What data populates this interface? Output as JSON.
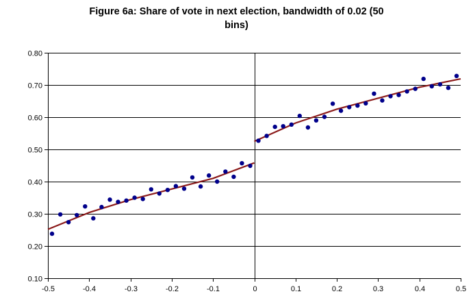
{
  "chart_data": {
    "type": "scatter",
    "title_lines": [
      "Figure 6a: Share of vote in next election, bandwidth of 0.02 (50",
      "bins)"
    ],
    "xlabel": "",
    "ylabel": "",
    "xlim": [
      -0.5,
      0.5
    ],
    "ylim": [
      0.1,
      0.8
    ],
    "x_ticks": [
      "-0.5",
      "-0.4",
      "-0.3",
      "-0.2",
      "-0.1",
      "0",
      "0.1",
      "0.2",
      "0.3",
      "0.4",
      "0.5"
    ],
    "y_ticks": [
      "0.10",
      "0.20",
      "0.30",
      "0.40",
      "0.50",
      "0.60",
      "0.70",
      "0.80"
    ],
    "grid": "horizontal",
    "vertical_line_at_x": 0,
    "marker_color": "#00008B",
    "fit_color": "#8B1A1A",
    "points": [
      {
        "x": -0.49,
        "y": 0.238
      },
      {
        "x": -0.47,
        "y": 0.298
      },
      {
        "x": -0.45,
        "y": 0.274
      },
      {
        "x": -0.43,
        "y": 0.296
      },
      {
        "x": -0.41,
        "y": 0.323
      },
      {
        "x": -0.39,
        "y": 0.286
      },
      {
        "x": -0.37,
        "y": 0.321
      },
      {
        "x": -0.35,
        "y": 0.344
      },
      {
        "x": -0.33,
        "y": 0.337
      },
      {
        "x": -0.31,
        "y": 0.341
      },
      {
        "x": -0.29,
        "y": 0.35
      },
      {
        "x": -0.27,
        "y": 0.346
      },
      {
        "x": -0.25,
        "y": 0.376
      },
      {
        "x": -0.23,
        "y": 0.363
      },
      {
        "x": -0.21,
        "y": 0.374
      },
      {
        "x": -0.19,
        "y": 0.386
      },
      {
        "x": -0.17,
        "y": 0.378
      },
      {
        "x": -0.15,
        "y": 0.413
      },
      {
        "x": -0.13,
        "y": 0.385
      },
      {
        "x": -0.11,
        "y": 0.419
      },
      {
        "x": -0.09,
        "y": 0.4
      },
      {
        "x": -0.07,
        "y": 0.431
      },
      {
        "x": -0.05,
        "y": 0.415
      },
      {
        "x": -0.03,
        "y": 0.457
      },
      {
        "x": -0.01,
        "y": 0.449
      },
      {
        "x": 0.01,
        "y": 0.527
      },
      {
        "x": 0.03,
        "y": 0.542
      },
      {
        "x": 0.05,
        "y": 0.57
      },
      {
        "x": 0.07,
        "y": 0.572
      },
      {
        "x": 0.09,
        "y": 0.577
      },
      {
        "x": 0.11,
        "y": 0.604
      },
      {
        "x": 0.13,
        "y": 0.568
      },
      {
        "x": 0.15,
        "y": 0.59
      },
      {
        "x": 0.17,
        "y": 0.601
      },
      {
        "x": 0.19,
        "y": 0.642
      },
      {
        "x": 0.21,
        "y": 0.62
      },
      {
        "x": 0.23,
        "y": 0.631
      },
      {
        "x": 0.25,
        "y": 0.636
      },
      {
        "x": 0.27,
        "y": 0.643
      },
      {
        "x": 0.29,
        "y": 0.673
      },
      {
        "x": 0.31,
        "y": 0.652
      },
      {
        "x": 0.33,
        "y": 0.665
      },
      {
        "x": 0.35,
        "y": 0.669
      },
      {
        "x": 0.37,
        "y": 0.68
      },
      {
        "x": 0.39,
        "y": 0.688
      },
      {
        "x": 0.41,
        "y": 0.719
      },
      {
        "x": 0.43,
        "y": 0.696
      },
      {
        "x": 0.45,
        "y": 0.702
      },
      {
        "x": 0.47,
        "y": 0.691
      },
      {
        "x": 0.49,
        "y": 0.728
      }
    ],
    "fit_left": [
      {
        "x": -0.5,
        "y": 0.252
      },
      {
        "x": -0.4,
        "y": 0.304
      },
      {
        "x": -0.3,
        "y": 0.344
      },
      {
        "x": -0.2,
        "y": 0.377
      },
      {
        "x": -0.1,
        "y": 0.41
      },
      {
        "x": 0.0,
        "y": 0.458
      }
    ],
    "fit_right": [
      {
        "x": 0.0,
        "y": 0.525
      },
      {
        "x": 0.1,
        "y": 0.582
      },
      {
        "x": 0.2,
        "y": 0.625
      },
      {
        "x": 0.3,
        "y": 0.659
      },
      {
        "x": 0.4,
        "y": 0.693
      },
      {
        "x": 0.5,
        "y": 0.719
      }
    ]
  }
}
